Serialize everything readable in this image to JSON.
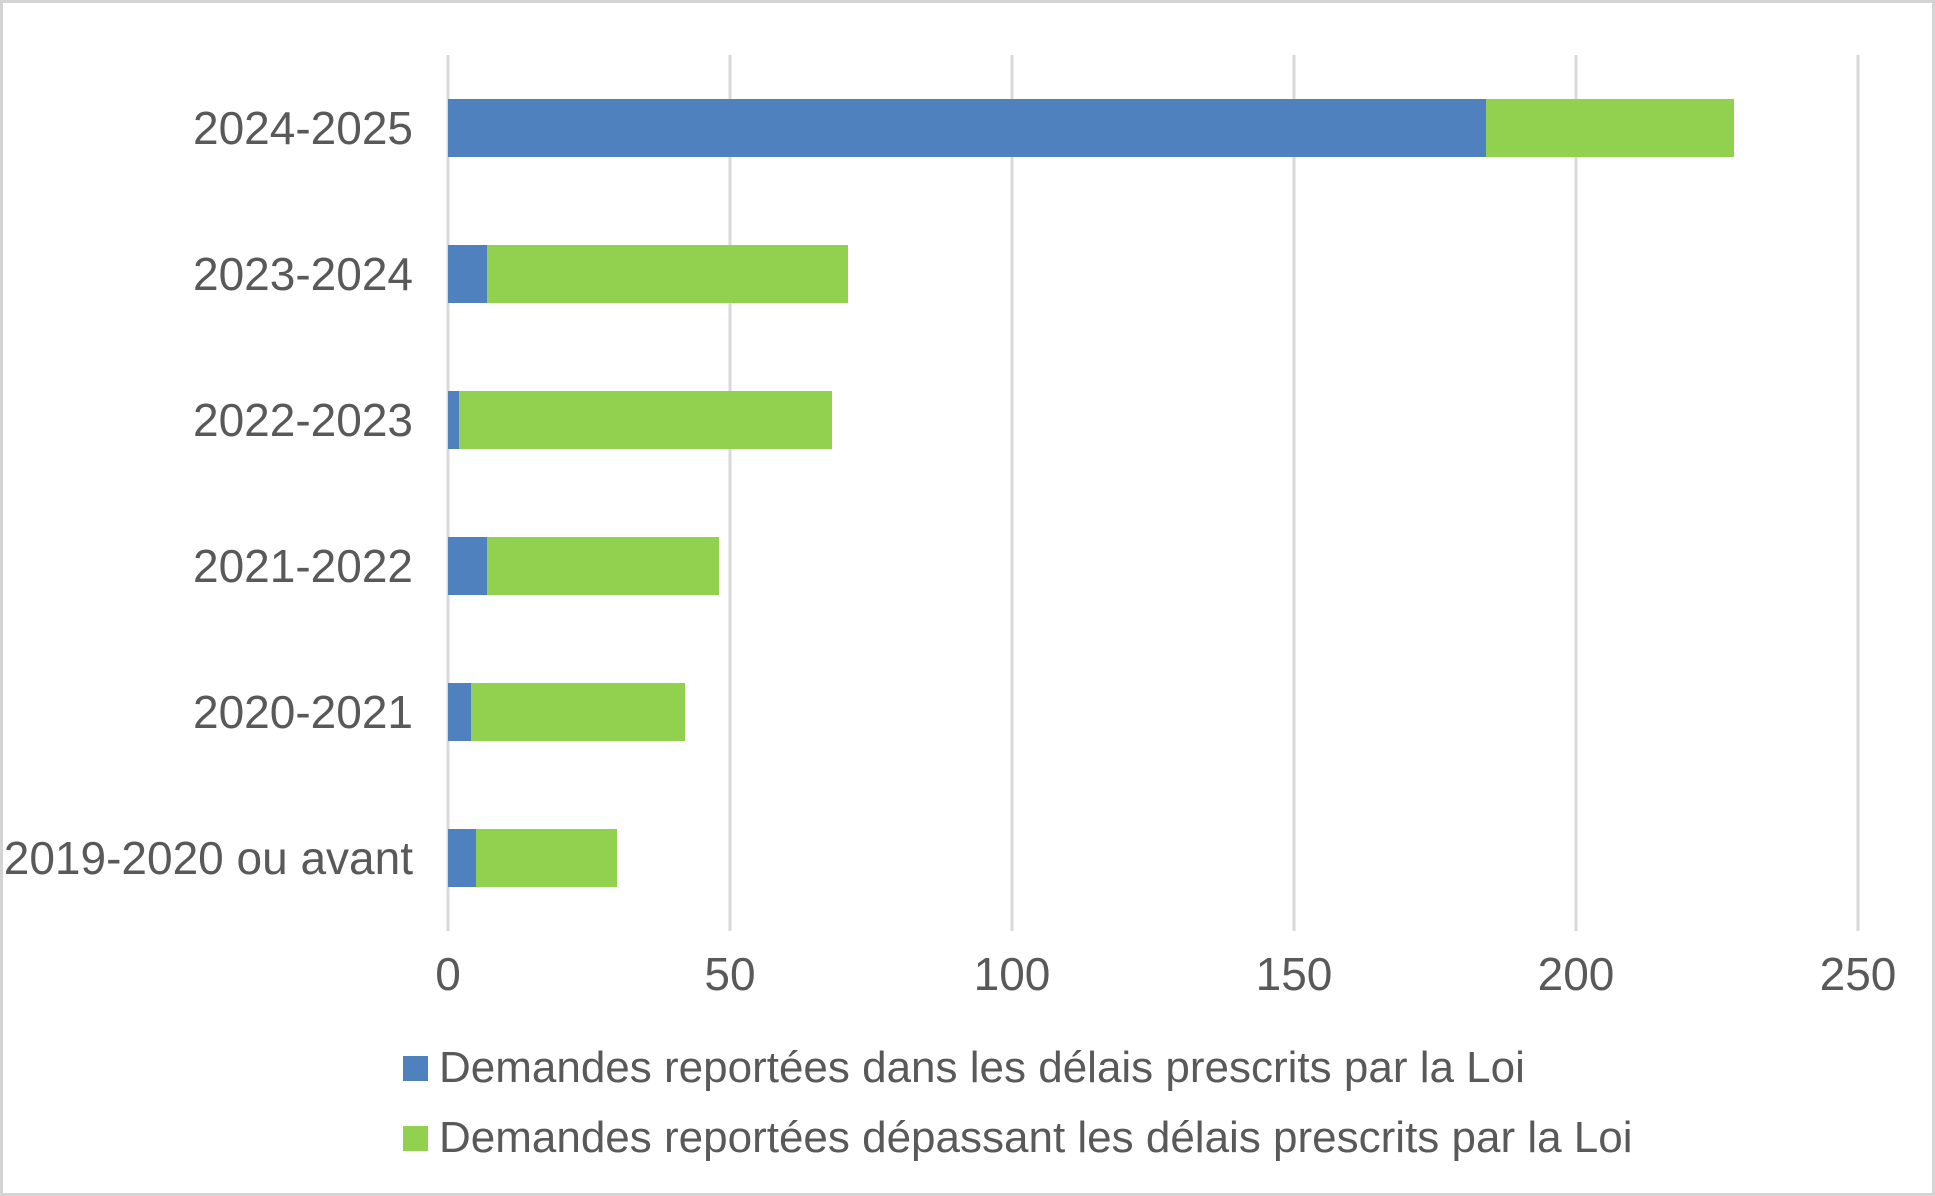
{
  "chart_data": {
    "type": "bar",
    "orientation": "horizontal",
    "stacked": true,
    "title": "",
    "xlabel": "",
    "ylabel": "",
    "categories": [
      "2024-2025",
      "2023-2024",
      "2022-2023",
      "2021-2022",
      "2020-2021",
      "2019-2020 ou avant"
    ],
    "series": [
      {
        "name": "Demandes reportées dans les délais prescrits par la Loi",
        "color": "#4E81BD",
        "values": [
          184,
          7,
          2,
          7,
          4,
          5
        ]
      },
      {
        "name": "Demandes reportées dépassant les délais prescrits par la Loi",
        "color": "#92D050",
        "values": [
          44,
          64,
          66,
          41,
          38,
          25
        ]
      }
    ],
    "totals": [
      228,
      71,
      68,
      48,
      42,
      30
    ],
    "xlim": [
      0,
      250
    ],
    "xticks": [
      0,
      50,
      100,
      150,
      200,
      250
    ],
    "grid": "vertical-only",
    "legend_position": "bottom-left",
    "colors": {
      "axis_text": "#595959",
      "gridline": "#D9D9D9",
      "background": "#FFFFFF",
      "frame_border": "#D4D4D4"
    }
  }
}
